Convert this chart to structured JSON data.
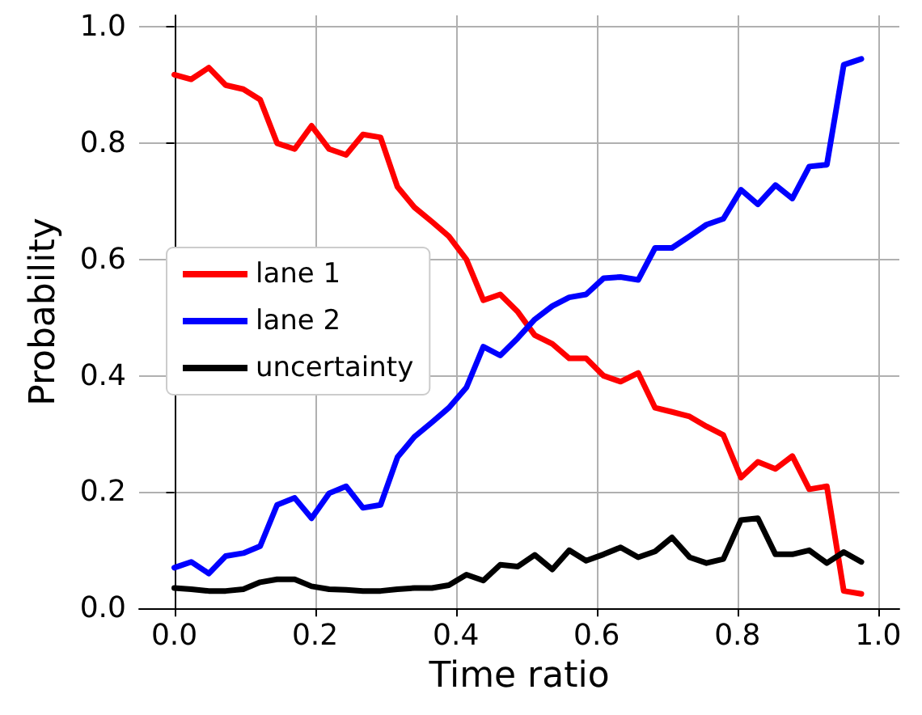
{
  "chart_data": {
    "type": "line",
    "xlabel": "Time ratio",
    "ylabel": "Probability",
    "x": [
      0,
      0.024,
      0.049,
      0.073,
      0.098,
      0.122,
      0.146,
      0.171,
      0.195,
      0.22,
      0.244,
      0.268,
      0.293,
      0.317,
      0.341,
      0.366,
      0.39,
      0.415,
      0.439,
      0.463,
      0.488,
      0.512,
      0.537,
      0.561,
      0.585,
      0.61,
      0.634,
      0.659,
      0.683,
      0.707,
      0.732,
      0.756,
      0.78,
      0.805,
      0.829,
      0.854,
      0.878,
      0.902,
      0.927,
      0.951,
      0.976
    ],
    "series": [
      {
        "name": "lane 1",
        "color": "#ff0000",
        "values": [
          0.918,
          0.91,
          0.93,
          0.9,
          0.893,
          0.875,
          0.8,
          0.79,
          0.83,
          0.79,
          0.78,
          0.815,
          0.81,
          0.725,
          0.69,
          0.665,
          0.64,
          0.6,
          0.53,
          0.54,
          0.51,
          0.47,
          0.455,
          0.43,
          0.43,
          0.4,
          0.39,
          0.405,
          0.345,
          0.338,
          0.33,
          0.313,
          0.298,
          0.225,
          0.252,
          0.24,
          0.262,
          0.205,
          0.21,
          0.03,
          0.025
        ]
      },
      {
        "name": "lane 2",
        "color": "#0000ff",
        "values": [
          0.07,
          0.08,
          0.06,
          0.09,
          0.095,
          0.107,
          0.178,
          0.19,
          0.155,
          0.198,
          0.21,
          0.173,
          0.178,
          0.26,
          0.295,
          0.32,
          0.345,
          0.38,
          0.45,
          0.435,
          0.465,
          0.497,
          0.52,
          0.535,
          0.54,
          0.568,
          0.57,
          0.565,
          0.62,
          0.62,
          0.64,
          0.66,
          0.67,
          0.72,
          0.695,
          0.728,
          0.705,
          0.76,
          0.763,
          0.935,
          0.945
        ]
      },
      {
        "name": "uncertainty",
        "color": "#000000",
        "values": [
          0.035,
          0.033,
          0.03,
          0.03,
          0.033,
          0.045,
          0.05,
          0.05,
          0.038,
          0.033,
          0.032,
          0.03,
          0.03,
          0.033,
          0.035,
          0.035,
          0.04,
          0.058,
          0.048,
          0.075,
          0.072,
          0.092,
          0.067,
          0.1,
          0.082,
          0.093,
          0.105,
          0.088,
          0.098,
          0.122,
          0.088,
          0.078,
          0.085,
          0.152,
          0.155,
          0.093,
          0.093,
          0.1,
          0.078,
          0.097,
          0.08
        ]
      }
    ],
    "xlim": [
      -0.05,
      1.03
    ],
    "xticks": [
      {
        "value": 0,
        "label": "0.0"
      },
      0.2,
      0.4,
      0.6,
      0.8,
      {
        "value": 1,
        "label": "1.0"
      }
    ],
    "ylim": [
      0,
      1.02
    ],
    "yticks": [
      {
        "value": 0,
        "label": "0.0"
      },
      0.2,
      0.4,
      0.6,
      0.8,
      {
        "value": 1,
        "label": "1.0"
      }
    ],
    "grid": true,
    "legend": "left",
    "marker": "none",
    "line_style": "solid"
  }
}
